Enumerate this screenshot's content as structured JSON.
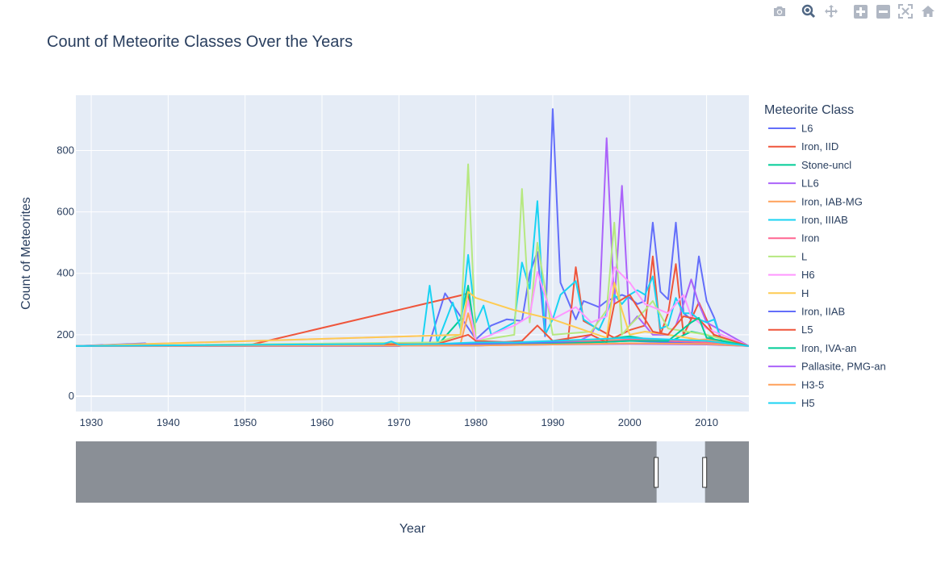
{
  "modebar": {
    "icons": [
      "camera-icon",
      "zoom-icon",
      "pan-icon",
      "zoom-in-icon",
      "zoom-out-icon",
      "autoscale-icon",
      "home-icon"
    ]
  },
  "chart_data": {
    "type": "line",
    "title": "Count of Meteorite Classes Over the Years",
    "xlabel": "Year",
    "ylabel": "Count of Meteorites",
    "legend_title": "Meteorite Class",
    "legend_position": "right",
    "xlim": [
      1928,
      2015.5
    ],
    "ylim": [
      -50,
      980
    ],
    "x_ticks": [
      1930,
      1940,
      1950,
      1960,
      1970,
      1980,
      1990,
      2000,
      2010
    ],
    "y_ticks": [
      0,
      200,
      400,
      600,
      800
    ],
    "grid": true,
    "rangeslider": {
      "selected_range": [
        2003.5,
        2009.8
      ]
    },
    "series": [
      {
        "name": "L6",
        "color": "#636efa",
        "x": [
          1928,
          1937,
          1938,
          1970,
          1974,
          1976,
          1980,
          1982,
          1984,
          1986,
          1987,
          1988,
          1989,
          1990,
          1991,
          1993,
          1994,
          1996,
          1997,
          1998,
          1999,
          2000,
          2001,
          2002,
          2003,
          2004,
          2005,
          2006,
          2007,
          2008,
          2009,
          2010,
          2011,
          2012,
          2015.5
        ],
        "y": [
          163,
          172,
          163,
          163,
          175,
          335,
          185,
          230,
          250,
          245,
          400,
          470,
          195,
          935,
          370,
          250,
          310,
          290,
          310,
          320,
          330,
          320,
          300,
          310,
          565,
          340,
          315,
          565,
          270,
          250,
          455,
          310,
          255,
          175,
          163
        ]
      },
      {
        "name": "Iron, IID",
        "color": "#ef553b",
        "x": [
          1928,
          1950,
          1978,
          1979,
          1980,
          1985,
          1990,
          1992,
          1993,
          1994,
          1998,
          2000,
          2002,
          2003,
          2004,
          2005,
          2006,
          2007,
          2008,
          2009,
          2011,
          2015.5
        ],
        "y": [
          163,
          163,
          328,
          335,
          180,
          175,
          175,
          185,
          420,
          245,
          190,
          215,
          230,
          455,
          200,
          270,
          430,
          200,
          250,
          305,
          195,
          163
        ]
      },
      {
        "name": "Stone-uncl",
        "color": "#00cc96",
        "x": [
          1928,
          1975,
          1978,
          1979,
          1980,
          1985,
          1990,
          1995,
          2000,
          2005,
          2008,
          2010,
          2012,
          2015.5
        ],
        "y": [
          163,
          165,
          250,
          360,
          175,
          170,
          175,
          180,
          195,
          175,
          210,
          200,
          170,
          163
        ]
      },
      {
        "name": "LL6",
        "color": "#ab63fa",
        "x": [
          1928,
          1980,
          1990,
          1993,
          1995,
          1996,
          1997,
          1998,
          1999,
          2000,
          2001,
          2002,
          2003,
          2005,
          2006,
          2007,
          2008,
          2009,
          2010,
          2015.5
        ],
        "y": [
          163,
          165,
          170,
          175,
          200,
          250,
          840,
          300,
          685,
          230,
          260,
          230,
          200,
          200,
          230,
          300,
          380,
          300,
          240,
          163
        ]
      },
      {
        "name": "Iron, IAB-MG",
        "color": "#ffa15a",
        "x": [
          1928,
          1978,
          1979,
          1980,
          1985,
          1990,
          1995,
          2000,
          2005,
          2010,
          2015.5
        ],
        "y": [
          163,
          170,
          270,
          175,
          170,
          175,
          180,
          185,
          180,
          185,
          163
        ]
      },
      {
        "name": "Iron, IIIAB",
        "color": "#19d3f3",
        "x": [
          1928,
          1973,
          1974,
          1975,
          1977,
          1978,
          1979,
          1980,
          1981,
          1982,
          1985,
          1986,
          1987,
          1988,
          1989,
          1990,
          1991,
          1993,
          1994,
          1996,
          1997,
          1998,
          1999,
          2000,
          2001,
          2002,
          2003,
          2004,
          2005,
          2006,
          2007,
          2008,
          2009,
          2010,
          2011,
          2012,
          2015.5
        ],
        "y": [
          163,
          170,
          360,
          175,
          305,
          220,
          460,
          240,
          295,
          200,
          240,
          435,
          350,
          635,
          200,
          250,
          330,
          375,
          250,
          215,
          270,
          330,
          300,
          330,
          345,
          330,
          390,
          220,
          230,
          320,
          270,
          270,
          250,
          240,
          250,
          175,
          163
        ]
      },
      {
        "name": "Iron",
        "color": "#ff6692",
        "x": [
          1928,
          1980,
          1990,
          1998,
          2000,
          2005,
          2010,
          2015.5
        ],
        "y": [
          163,
          170,
          175,
          180,
          185,
          180,
          175,
          163
        ]
      },
      {
        "name": "L",
        "color": "#b6e880",
        "x": [
          1928,
          1975,
          1978,
          1979,
          1980,
          1985,
          1986,
          1987,
          1988,
          1990,
          1995,
          1997,
          1998,
          1999,
          2000,
          2002,
          2003,
          2005,
          2010,
          2015.5
        ],
        "y": [
          163,
          175,
          200,
          755,
          180,
          200,
          675,
          240,
          500,
          200,
          210,
          280,
          565,
          200,
          230,
          280,
          310,
          220,
          200,
          163
        ]
      },
      {
        "name": "H6",
        "color": "#ff97ff",
        "x": [
          1928,
          1978,
          1979,
          1980,
          1985,
          1987,
          1988,
          1990,
          1993,
          1995,
          1997,
          1998,
          2000,
          2002,
          2005,
          2007,
          2008,
          2010,
          2015.5
        ],
        "y": [
          163,
          200,
          310,
          180,
          230,
          260,
          405,
          250,
          290,
          240,
          260,
          420,
          370,
          300,
          270,
          330,
          260,
          220,
          163
        ]
      },
      {
        "name": "H",
        "color": "#fecb52",
        "x": [
          1928,
          1978,
          1979,
          1980,
          1985,
          1990,
          1997,
          1998,
          1999,
          2000,
          2002,
          2005,
          2010,
          2015.5
        ],
        "y": [
          163,
          200,
          340,
          320,
          280,
          250,
          190,
          370,
          280,
          200,
          210,
          200,
          180,
          163
        ]
      },
      {
        "name": "Iron, IIAB",
        "color": "#636efa",
        "x": [
          1928,
          1970,
          1980,
          1985,
          1990,
          1995,
          2000,
          2005,
          2010,
          2015.5
        ],
        "y": [
          163,
          165,
          170,
          170,
          175,
          175,
          180,
          175,
          170,
          163
        ]
      },
      {
        "name": "L5",
        "color": "#ef553b",
        "x": [
          1928,
          1975,
          1979,
          1980,
          1983,
          1986,
          1988,
          1990,
          1995,
          1997,
          1998,
          2000,
          2003,
          2005,
          2007,
          2009,
          2011,
          2015.5
        ],
        "y": [
          163,
          170,
          200,
          180,
          175,
          180,
          230,
          180,
          200,
          175,
          300,
          330,
          210,
          200,
          260,
          250,
          200,
          163
        ]
      },
      {
        "name": "Iron, IVA-an",
        "color": "#00cc96",
        "x": [
          1928,
          1980,
          1990,
          1995,
          2000,
          2005,
          2008,
          2009,
          2010,
          2015.5
        ],
        "y": [
          163,
          165,
          170,
          175,
          180,
          180,
          240,
          255,
          190,
          163
        ]
      },
      {
        "name": "Pallasite, PMG-an",
        "color": "#ab63fa",
        "x": [
          1928,
          1957,
          1980,
          1990,
          2000,
          2010,
          2015.5
        ],
        "y": [
          163,
          163,
          165,
          168,
          170,
          168,
          163
        ]
      },
      {
        "name": "H3-5",
        "color": "#ffa15a",
        "x": [
          1928,
          1980,
          1990,
          2000,
          2010,
          2015.5
        ],
        "y": [
          163,
          165,
          168,
          172,
          170,
          163
        ]
      },
      {
        "name": "H5",
        "color": "#19d3f3",
        "x": [
          1928,
          1968,
          1969,
          1970,
          1975,
          1980,
          1985,
          1990,
          1995,
          2000,
          2005,
          2010,
          2015.5
        ],
        "y": [
          163,
          170,
          178,
          168,
          170,
          175,
          175,
          180,
          185,
          190,
          185,
          180,
          163
        ]
      }
    ]
  }
}
